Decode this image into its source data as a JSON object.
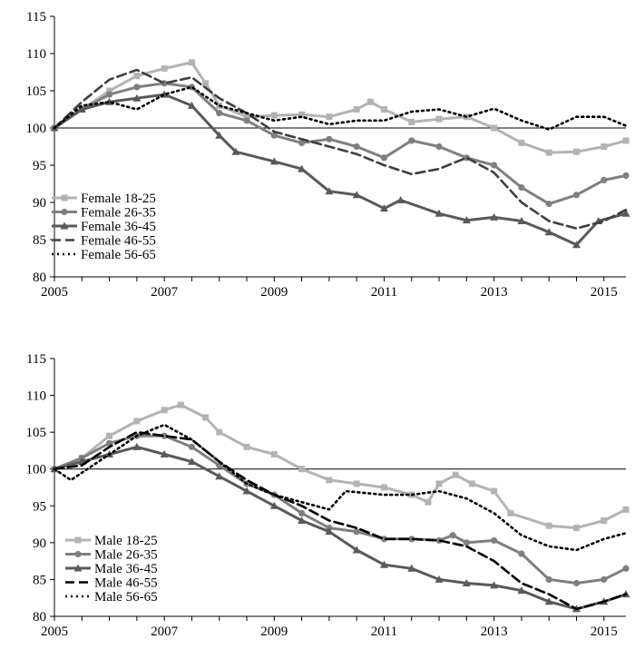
{
  "chart_data": [
    {
      "type": "line",
      "panel": "female",
      "title": "",
      "xlabel": "",
      "ylabel": "",
      "xlim": [
        2005,
        2015.4
      ],
      "ylim": [
        80,
        115
      ],
      "x_ticks": [
        2005,
        2007,
        2009,
        2011,
        2013,
        2015
      ],
      "x_tick_labels": [
        "2005",
        "2007",
        "2009",
        "2011",
        "2013",
        "2015"
      ],
      "y_ticks": [
        80,
        85,
        90,
        95,
        100,
        105,
        110,
        115
      ],
      "y_tick_labels": [
        "80",
        "85",
        "90",
        "95",
        "100",
        "105",
        "110",
        "115"
      ],
      "reference_line": 100,
      "legend_position": "bottom-left",
      "series": [
        {
          "name": "Female 18-25",
          "style": "square-markers",
          "color": "#b3b3b3",
          "points": [
            [
              2005,
              100
            ],
            [
              2005.5,
              102.5
            ],
            [
              2006,
              105
            ],
            [
              2006.5,
              107
            ],
            [
              2007,
              108
            ],
            [
              2007.5,
              108.8
            ],
            [
              2007.75,
              106
            ],
            [
              2008,
              103
            ],
            [
              2008.5,
              101.5
            ],
            [
              2009,
              101.7
            ],
            [
              2009.5,
              101.8
            ],
            [
              2010,
              101.5
            ],
            [
              2010.5,
              102.5
            ],
            [
              2010.75,
              103.5
            ],
            [
              2011,
              102.5
            ],
            [
              2011.5,
              100.8
            ],
            [
              2012,
              101.2
            ],
            [
              2012.5,
              101.5
            ],
            [
              2013,
              100
            ],
            [
              2013.5,
              98
            ],
            [
              2014,
              96.7
            ],
            [
              2014.5,
              96.8
            ],
            [
              2015,
              97.5
            ],
            [
              2015.4,
              98.3
            ]
          ]
        },
        {
          "name": "Female 26-35",
          "style": "circle-markers",
          "color": "#7f7f7f",
          "points": [
            [
              2005,
              100
            ],
            [
              2005.5,
              102.5
            ],
            [
              2006,
              104.5
            ],
            [
              2006.5,
              105.5
            ],
            [
              2007,
              106
            ],
            [
              2007.5,
              105.5
            ],
            [
              2008,
              102
            ],
            [
              2008.5,
              101
            ],
            [
              2009,
              99
            ],
            [
              2009.5,
              98
            ],
            [
              2010,
              98.5
            ],
            [
              2010.5,
              97.5
            ],
            [
              2011,
              96
            ],
            [
              2011.5,
              98.3
            ],
            [
              2012,
              97.5
            ],
            [
              2012.5,
              96
            ],
            [
              2013,
              95
            ],
            [
              2013.5,
              92
            ],
            [
              2014,
              89.8
            ],
            [
              2014.5,
              91
            ],
            [
              2015,
              93
            ],
            [
              2015.4,
              93.6
            ]
          ]
        },
        {
          "name": "Female 36-45",
          "style": "triangle-markers",
          "color": "#595959",
          "points": [
            [
              2005,
              100
            ],
            [
              2005.5,
              102.5
            ],
            [
              2006,
              103.5
            ],
            [
              2006.5,
              104
            ],
            [
              2007,
              104.5
            ],
            [
              2007.5,
              103
            ],
            [
              2008,
              99
            ],
            [
              2008.3,
              96.8
            ],
            [
              2009,
              95.5
            ],
            [
              2009.5,
              94.5
            ],
            [
              2010,
              91.5
            ],
            [
              2010.5,
              91
            ],
            [
              2011,
              89.2
            ],
            [
              2011.3,
              90.3
            ],
            [
              2012,
              88.5
            ],
            [
              2012.5,
              87.6
            ],
            [
              2013,
              88
            ],
            [
              2013.5,
              87.5
            ],
            [
              2014,
              86
            ],
            [
              2014.5,
              84.3
            ],
            [
              2014.9,
              87.5
            ],
            [
              2015.4,
              88.5
            ]
          ]
        },
        {
          "name": "Female 46-55",
          "style": "dashed",
          "color": "#3f3f3f",
          "points": [
            [
              2005,
              100
            ],
            [
              2005.5,
              103.5
            ],
            [
              2006,
              106.5
            ],
            [
              2006.5,
              107.8
            ],
            [
              2007,
              106
            ],
            [
              2007.5,
              106.8
            ],
            [
              2008,
              104
            ],
            [
              2008.5,
              102
            ],
            [
              2009,
              99.5
            ],
            [
              2009.5,
              98.5
            ],
            [
              2010,
              97.5
            ],
            [
              2010.5,
              96.5
            ],
            [
              2011,
              95
            ],
            [
              2011.5,
              93.8
            ],
            [
              2012,
              94.5
            ],
            [
              2012.5,
              96
            ],
            [
              2013,
              94
            ],
            [
              2013.5,
              90
            ],
            [
              2014,
              87.5
            ],
            [
              2014.5,
              86.5
            ],
            [
              2015,
              87.5
            ],
            [
              2015.4,
              89
            ]
          ]
        },
        {
          "name": "Female 56-65",
          "style": "dotted",
          "color": "#000000",
          "points": [
            [
              2005,
              100
            ],
            [
              2005.5,
              103
            ],
            [
              2006,
              103.5
            ],
            [
              2006.5,
              102.5
            ],
            [
              2007,
              104.5
            ],
            [
              2007.5,
              105.5
            ],
            [
              2008,
              103
            ],
            [
              2008.5,
              102
            ],
            [
              2009,
              101
            ],
            [
              2009.5,
              101.5
            ],
            [
              2010,
              100.5
            ],
            [
              2010.5,
              101
            ],
            [
              2011,
              101
            ],
            [
              2011.5,
              102.2
            ],
            [
              2012,
              102.5
            ],
            [
              2012.5,
              101.5
            ],
            [
              2013,
              102.6
            ],
            [
              2013.5,
              101
            ],
            [
              2014,
              99.8
            ],
            [
              2014.5,
              101.5
            ],
            [
              2015,
              101.5
            ],
            [
              2015.4,
              100.3
            ]
          ]
        }
      ]
    },
    {
      "type": "line",
      "panel": "male",
      "title": "",
      "xlabel": "",
      "ylabel": "",
      "xlim": [
        2005,
        2015.4
      ],
      "ylim": [
        80,
        115
      ],
      "x_ticks": [
        2005,
        2007,
        2009,
        2011,
        2013,
        2015
      ],
      "x_tick_labels": [
        "2005",
        "2007",
        "2009",
        "2011",
        "2013",
        "2015"
      ],
      "y_ticks": [
        80,
        85,
        90,
        95,
        100,
        105,
        110,
        115
      ],
      "y_tick_labels": [
        "80",
        "85",
        "90",
        "95",
        "100",
        "105",
        "110",
        "115"
      ],
      "reference_line": 100,
      "legend_position": "bottom-left",
      "series": [
        {
          "name": "Male 18-25",
          "style": "square-markers",
          "color": "#b3b3b3",
          "points": [
            [
              2005,
              100
            ],
            [
              2005.5,
              101.5
            ],
            [
              2006,
              104.5
            ],
            [
              2006.5,
              106.5
            ],
            [
              2007,
              108
            ],
            [
              2007.3,
              108.7
            ],
            [
              2007.75,
              107
            ],
            [
              2008,
              105
            ],
            [
              2008.5,
              103
            ],
            [
              2009,
              102
            ],
            [
              2009.5,
              100
            ],
            [
              2010,
              98.5
            ],
            [
              2010.5,
              98
            ],
            [
              2011,
              97.5
            ],
            [
              2011.5,
              96.5
            ],
            [
              2011.8,
              95.5
            ],
            [
              2012,
              98
            ],
            [
              2012.3,
              99.2
            ],
            [
              2012.6,
              98
            ],
            [
              2013,
              97
            ],
            [
              2013.3,
              94
            ],
            [
              2014,
              92.3
            ],
            [
              2014.5,
              92
            ],
            [
              2015,
              93
            ],
            [
              2015.4,
              94.5
            ]
          ]
        },
        {
          "name": "Male 26-35",
          "style": "circle-markers",
          "color": "#7f7f7f",
          "points": [
            [
              2005,
              100
            ],
            [
              2005.5,
              101.5
            ],
            [
              2006,
              103.5
            ],
            [
              2006.5,
              104.5
            ],
            [
              2007,
              104.5
            ],
            [
              2007.5,
              103
            ],
            [
              2008,
              100.5
            ],
            [
              2008.5,
              98
            ],
            [
              2009,
              96.5
            ],
            [
              2009.5,
              94
            ],
            [
              2010,
              92
            ],
            [
              2010.5,
              91.5
            ],
            [
              2011,
              90.5
            ],
            [
              2011.5,
              90.5
            ],
            [
              2012,
              90.3
            ],
            [
              2012.25,
              91
            ],
            [
              2012.5,
              90
            ],
            [
              2013,
              90.3
            ],
            [
              2013.5,
              88.5
            ],
            [
              2014,
              85
            ],
            [
              2014.5,
              84.5
            ],
            [
              2015,
              85
            ],
            [
              2015.4,
              86.5
            ]
          ]
        },
        {
          "name": "Male 36-45",
          "style": "triangle-markers",
          "color": "#595959",
          "points": [
            [
              2005,
              100
            ],
            [
              2005.5,
              101
            ],
            [
              2006,
              102
            ],
            [
              2006.5,
              103
            ],
            [
              2007,
              102
            ],
            [
              2007.5,
              101
            ],
            [
              2008,
              99
            ],
            [
              2008.5,
              97
            ],
            [
              2009,
              95
            ],
            [
              2009.5,
              93
            ],
            [
              2010,
              91.5
            ],
            [
              2010.5,
              89
            ],
            [
              2011,
              87
            ],
            [
              2011.5,
              86.5
            ],
            [
              2012,
              85
            ],
            [
              2012.5,
              84.5
            ],
            [
              2013,
              84.2
            ],
            [
              2013.5,
              83.5
            ],
            [
              2014,
              82
            ],
            [
              2014.5,
              81
            ],
            [
              2015,
              82
            ],
            [
              2015.4,
              83
            ]
          ]
        },
        {
          "name": "Male 46-55",
          "style": "dashed",
          "color": "#000000",
          "points": [
            [
              2005,
              100
            ],
            [
              2005.5,
              100.5
            ],
            [
              2006,
              103
            ],
            [
              2006.5,
              105
            ],
            [
              2007,
              104.5
            ],
            [
              2007.5,
              104
            ],
            [
              2008,
              101
            ],
            [
              2008.5,
              98.5
            ],
            [
              2009,
              96.5
            ],
            [
              2009.5,
              95
            ],
            [
              2010,
              93
            ],
            [
              2010.5,
              92
            ],
            [
              2011,
              90.5
            ],
            [
              2011.5,
              90.5
            ],
            [
              2012,
              90.3
            ],
            [
              2012.5,
              89.5
            ],
            [
              2013,
              87.5
            ],
            [
              2013.5,
              84.5
            ],
            [
              2014,
              83
            ],
            [
              2014.5,
              81
            ],
            [
              2015,
              82
            ],
            [
              2015.4,
              83
            ]
          ]
        },
        {
          "name": "Male 56-65",
          "style": "dotted",
          "color": "#000000",
          "points": [
            [
              2005,
              100
            ],
            [
              2005.3,
              98.5
            ],
            [
              2006,
              102
            ],
            [
              2006.5,
              104.5
            ],
            [
              2007,
              106
            ],
            [
              2007.5,
              104
            ],
            [
              2008,
              101
            ],
            [
              2008.5,
              98
            ],
            [
              2009,
              96.5
            ],
            [
              2009.5,
              95.5
            ],
            [
              2010,
              94.5
            ],
            [
              2010.3,
              97
            ],
            [
              2011,
              96.5
            ],
            [
              2011.5,
              96.5
            ],
            [
              2012,
              97
            ],
            [
              2012.5,
              96
            ],
            [
              2013,
              94
            ],
            [
              2013.5,
              91
            ],
            [
              2014,
              89.5
            ],
            [
              2014.5,
              89
            ],
            [
              2015,
              90.5
            ],
            [
              2015.4,
              91.3
            ]
          ]
        }
      ]
    }
  ]
}
